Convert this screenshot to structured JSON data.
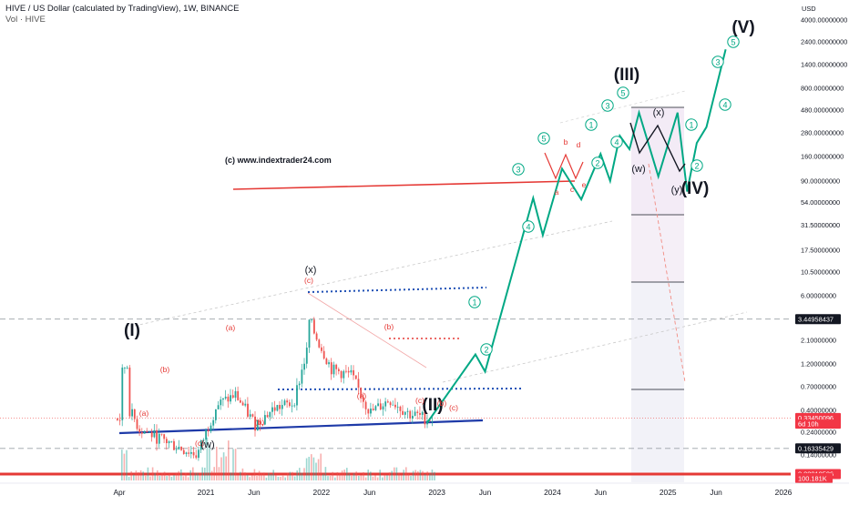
{
  "header": {
    "title": "HIVE / US Dollar (calculated by TradingView), 1W, BINANCE",
    "subtitle": "Vol · HIVE"
  },
  "watermark": "(c) www.indextrader24.com",
  "colors": {
    "up": "#26a69a",
    "down": "#ef5350",
    "projection": "#00a884",
    "wave_label": "#131722",
    "sub_wave_label": "#e53935",
    "resistance": "#e53935",
    "support_blue": "#1e3aa8",
    "dotted_blue": "#1e4fb5",
    "axis_bg": "#ffffff",
    "price_badge": "#f23645",
    "level_badge": "#131722"
  },
  "chart_data": {
    "type": "candlestick",
    "title": "HIVE / US Dollar (calculated by TradingView), 1W, BINANCE",
    "y_axis_unit": "USD",
    "y_scale": "log",
    "yticks": [
      "4000.00000000",
      "2400.00000000",
      "1400.00000000",
      "800.00000000",
      "480.00000000",
      "280.00000000",
      "160.00000000",
      "90.00000000",
      "54.00000000",
      "31.50000000",
      "17.50000000",
      "10.50000000",
      "6.00000000",
      "3.60000000",
      "2.10000000",
      "1.20000000",
      "0.70000000",
      "0.40000000",
      "0.24000000",
      "0.14000000"
    ],
    "ytick_values": [
      4000,
      2400,
      1400,
      800,
      480,
      280,
      160,
      90,
      54,
      31.5,
      17.5,
      10.5,
      6,
      3.6,
      2.1,
      1.2,
      0.7,
      0.4,
      0.24,
      0.14
    ],
    "xticks": [
      "Apr",
      "2021",
      "Jun",
      "2022",
      "Jun",
      "2023",
      "Jun",
      "2024",
      "Jun",
      "2025",
      "Jun",
      "2026"
    ],
    "xtick_dates": [
      "2020-04",
      "2021-01",
      "2021-06",
      "2022-01",
      "2022-06",
      "2023-01",
      "2023-06",
      "2024-01",
      "2024-06",
      "2025-01",
      "2025-06",
      "2026-01"
    ],
    "price_labels": [
      {
        "text": "3.44958437",
        "value": 3.44958437,
        "style": "level"
      },
      {
        "text": "0.33450096",
        "value": 0.33450096,
        "style": "current"
      },
      {
        "text": "6d 10h",
        "value": 0.29,
        "style": "countdown"
      },
      {
        "text": "0.16335429",
        "value": 0.16335429,
        "style": "level"
      },
      {
        "text": "0.08918506",
        "value": 0.08918506,
        "style": "current"
      }
    ],
    "volume_label": "100.181K",
    "price_history": {
      "dates": [
        "2020-04",
        "2020-06",
        "2020-08",
        "2020-10",
        "2020-12",
        "2021-02",
        "2021-04",
        "2021-06",
        "2021-08",
        "2021-10",
        "2021-12",
        "2022-02",
        "2022-04",
        "2022-06",
        "2022-08",
        "2022-10",
        "2022-12"
      ],
      "close": [
        0.62,
        0.26,
        0.21,
        0.17,
        0.14,
        0.45,
        0.58,
        0.29,
        0.42,
        0.48,
        2.7,
        1.05,
        0.92,
        0.38,
        0.52,
        0.37,
        0.33
      ]
    },
    "projection_path": {
      "dates": [
        "2022-12",
        "2023-05",
        "2023-06",
        "2023-11",
        "2023-12",
        "2024-02",
        "2024-04",
        "2024-06",
        "2024-07",
        "2024-08",
        "2024-09",
        "2024-10",
        "2024-12",
        "2025-02",
        "2025-03",
        "2025-04",
        "2025-05",
        "2025-07"
      ],
      "prices": [
        0.3,
        1.5,
        1.0,
        60,
        25,
        120,
        58,
        170,
        90,
        260,
        190,
        450,
        100,
        450,
        70,
        220,
        320,
        2000
      ]
    },
    "horizontal_levels": [
      3.44958437,
      0.16335429,
      0.08918506,
      0.33450096
    ],
    "wave_labels": {
      "primary": [
        "(I)",
        "(II)",
        "(III)",
        "(IV)",
        "(V)"
      ],
      "intermediate": [
        "(x)",
        "(w)",
        "(x)",
        "(w)",
        "(y)"
      ],
      "sub_waves": [
        "(a)",
        "(b)",
        "(c)",
        "(a)",
        "(b)",
        "(c)",
        "(a)",
        "(b)",
        "(c)",
        "(b)",
        "(c)",
        "(a)",
        "(b)",
        "(c)"
      ],
      "impulse_numbers": [
        "1",
        "2",
        "3",
        "4",
        "5"
      ],
      "triangle": [
        "a",
        "b",
        "c",
        "d",
        "e"
      ]
    }
  }
}
